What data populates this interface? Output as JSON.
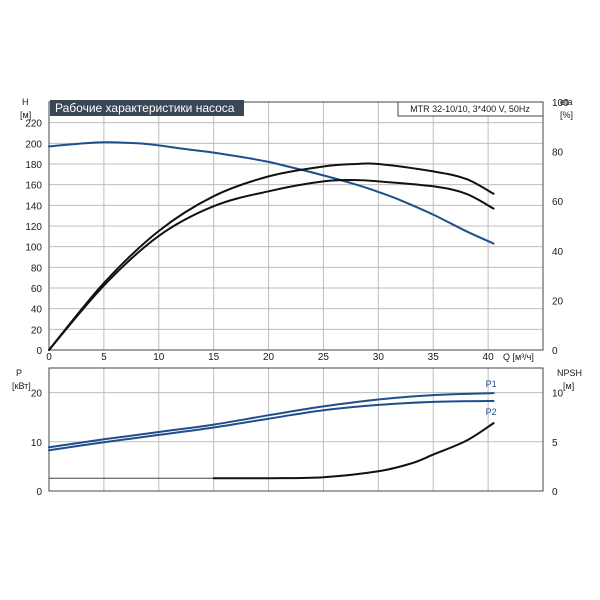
{
  "chart_data": [
    {
      "type": "line",
      "title": "Рабочие характеристики насоса",
      "subtitle": "MTR 32-10/10, 3*400 V, 50Hz",
      "xlabel": "Q [м³/ч]",
      "xlim": [
        0,
        45
      ],
      "x_ticks": [
        "0",
        "5",
        "10",
        "15",
        "20",
        "25",
        "30",
        "35",
        "40"
      ],
      "grid": true,
      "left_axis": {
        "label": "H",
        "unit": "[м]",
        "ylim": [
          0,
          240
        ],
        "ticks": [
          "0",
          "20",
          "40",
          "60",
          "80",
          "100",
          "120",
          "140",
          "160",
          "180",
          "200",
          "220"
        ]
      },
      "right_axis": {
        "label": "eta",
        "unit": "[%]",
        "ylim": [
          0,
          100
        ],
        "ticks": [
          "0",
          "20",
          "40",
          "60",
          "80",
          "100"
        ]
      },
      "series": [
        {
          "axis": "left",
          "color": "#1f4e8c",
          "points": [
            [
              0,
              197
            ],
            [
              2,
              199
            ],
            [
              5,
              201
            ],
            [
              8,
              200
            ],
            [
              10,
              198
            ],
            [
              12,
              195
            ],
            [
              15,
              191
            ],
            [
              18,
              186
            ],
            [
              20,
              182
            ],
            [
              22,
              177
            ],
            [
              25,
              169
            ],
            [
              28,
              160
            ],
            [
              30,
              153
            ],
            [
              32,
              145
            ],
            [
              35,
              131
            ],
            [
              38,
              115
            ],
            [
              40.5,
              103
            ]
          ]
        },
        {
          "axis": "right",
          "color": "#111111",
          "points": [
            [
              0,
              0
            ],
            [
              5,
              27
            ],
            [
              10,
              48
            ],
            [
              15,
              62
            ],
            [
              20,
              70
            ],
            [
              25,
              74
            ],
            [
              28,
              75
            ],
            [
              30,
              75
            ],
            [
              35,
              72
            ],
            [
              38,
              69
            ],
            [
              40.5,
              63
            ]
          ]
        },
        {
          "axis": "right",
          "color": "#111111",
          "points": [
            [
              0,
              0
            ],
            [
              5,
              26
            ],
            [
              10,
              46
            ],
            [
              15,
              58
            ],
            [
              20,
              64
            ],
            [
              25,
              68
            ],
            [
              28,
              68.5
            ],
            [
              30,
              68
            ],
            [
              35,
              66
            ],
            [
              38,
              63
            ],
            [
              40.5,
              57
            ]
          ]
        }
      ]
    },
    {
      "type": "line",
      "xlim": [
        0,
        45
      ],
      "grid": true,
      "left_axis": {
        "label": "P",
        "unit": "[кВт]",
        "ylim": [
          0,
          25
        ],
        "ticks": [
          "0",
          "10",
          "20"
        ]
      },
      "right_axis": {
        "label": "NPSH",
        "unit": "[м]",
        "ylim": [
          0,
          12.5
        ],
        "ticks": [
          "0",
          "5",
          "10"
        ]
      },
      "series": [
        {
          "name": "P1",
          "axis": "left",
          "color": "#1f4e8c",
          "points": [
            [
              0,
              8.9
            ],
            [
              5,
              10.5
            ],
            [
              10,
              12
            ],
            [
              15,
              13.5
            ],
            [
              20,
              15.4
            ],
            [
              25,
              17.2
            ],
            [
              30,
              18.6
            ],
            [
              35,
              19.5
            ],
            [
              40.5,
              19.9
            ]
          ]
        },
        {
          "name": "P2",
          "axis": "left",
          "color": "#1f4e8c",
          "points": [
            [
              0,
              8.3
            ],
            [
              5,
              9.9
            ],
            [
              10,
              11.4
            ],
            [
              15,
              12.9
            ],
            [
              20,
              14.7
            ],
            [
              25,
              16.4
            ],
            [
              30,
              17.5
            ],
            [
              35,
              18.1
            ],
            [
              40.5,
              18.3
            ]
          ]
        },
        {
          "axis": "right",
          "color": "#111111",
          "points": [
            [
              15,
              1.3
            ],
            [
              20,
              1.3
            ],
            [
              25,
              1.4
            ],
            [
              30,
              2.0
            ],
            [
              33,
              2.8
            ],
            [
              35,
              3.7
            ],
            [
              38,
              5.1
            ],
            [
              40.5,
              6.9
            ]
          ]
        }
      ]
    }
  ]
}
